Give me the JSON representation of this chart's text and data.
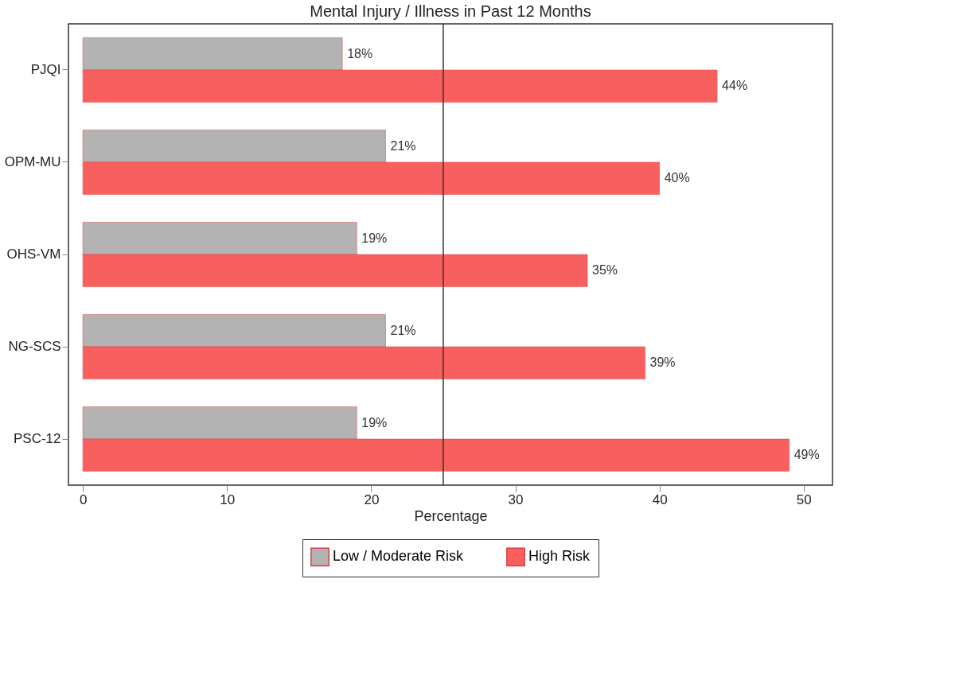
{
  "chart_data": {
    "type": "bar",
    "orientation": "horizontal",
    "title": "Mental Injury / Illness in Past 12 Months",
    "xlabel": "Percentage",
    "categories": [
      "PJQI",
      "OPM-MU",
      "OHS-VM",
      "NG-SCS",
      "PSC-12"
    ],
    "series": [
      {
        "name": "Low / Moderate Risk",
        "color": "#b3b3b3",
        "values": [
          18,
          21,
          19,
          21,
          19
        ],
        "value_labels": [
          "18%",
          "21%",
          "19%",
          "21%",
          "19%"
        ]
      },
      {
        "name": "High Risk",
        "color": "#f8605f",
        "values": [
          44,
          40,
          35,
          39,
          49
        ],
        "value_labels": [
          "44%",
          "40%",
          "35%",
          "39%",
          "49%"
        ]
      }
    ],
    "xlim": [
      -1,
      52
    ],
    "xticks": [
      0,
      10,
      20,
      30,
      40,
      50
    ],
    "grid": false,
    "legend": "bottom",
    "ref_lines": [
      {
        "axis": "x",
        "value": 25,
        "color": "#333333"
      }
    ]
  }
}
